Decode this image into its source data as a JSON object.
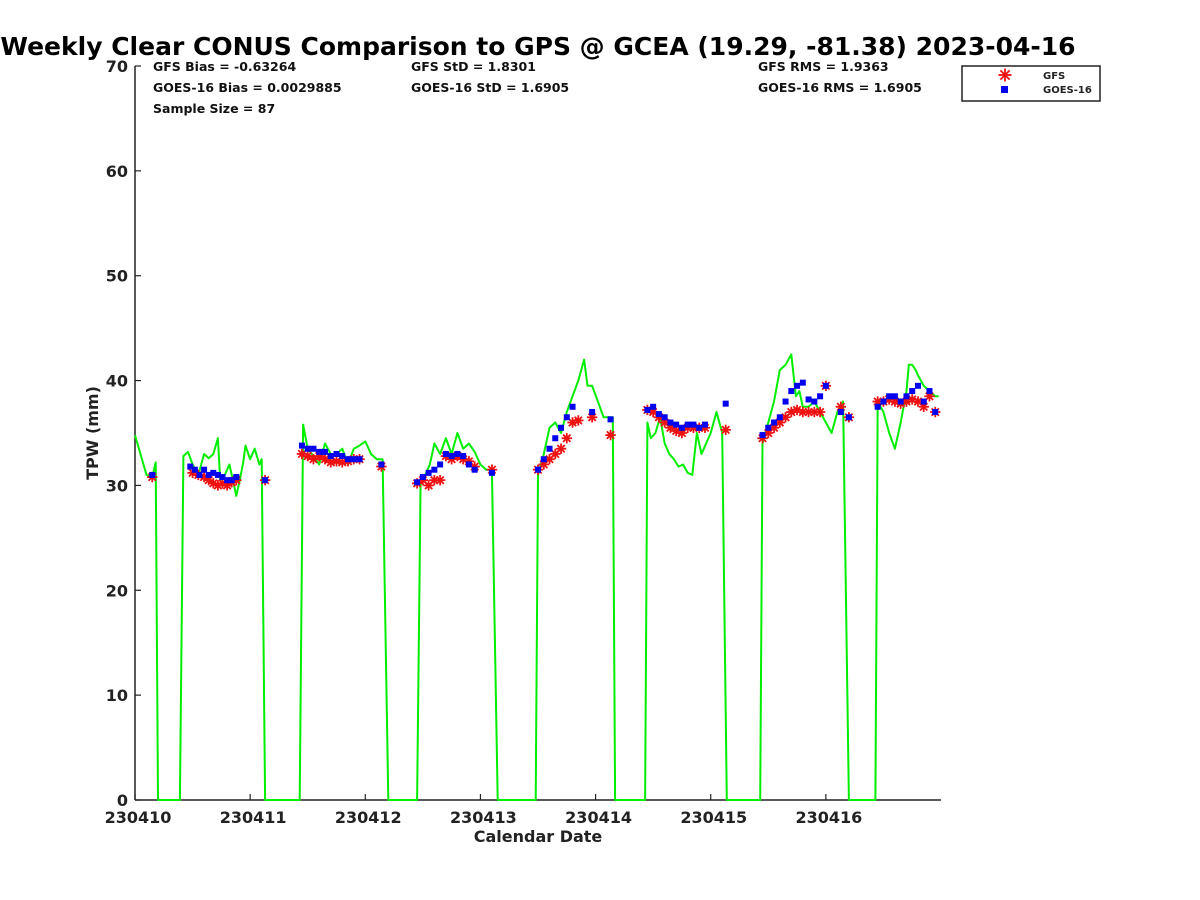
{
  "chart_data": {
    "type": "line",
    "title": "Weekly Clear CONUS Comparison to GPS @ GCEA (19.29, -81.38) 2023-04-16",
    "xlabel": "Calendar Date",
    "ylabel": "TPW (mm)",
    "ylim": [
      0,
      70
    ],
    "xlim": [
      0,
      7
    ],
    "yticks": [
      0,
      10,
      20,
      30,
      40,
      50,
      60,
      70
    ],
    "xticks": [
      {
        "value": 0,
        "label": "230410"
      },
      {
        "value": 1,
        "label": "230411"
      },
      {
        "value": 2,
        "label": "230412"
      },
      {
        "value": 3,
        "label": "230413"
      },
      {
        "value": 4,
        "label": "230414"
      },
      {
        "value": 5,
        "label": "230415"
      },
      {
        "value": 6,
        "label": "230416"
      }
    ],
    "grid": false,
    "legend_position": "top-right",
    "stats": {
      "gfs_bias": "GFS Bias = -0.63264",
      "goes_bias": "GOES-16 Bias = 0.0029885",
      "sample_size": "Sample Size = 87",
      "gfs_std": "GFS StD = 1.8301",
      "goes_std": "GOES-16 StD = 1.6905",
      "gfs_rms": "GFS RMS = 1.9363",
      "goes_rms": "GOES-16 RMS = 1.6905"
    },
    "series": [
      {
        "name": "GPS",
        "color": "#00ee00",
        "style": "line",
        "x": [
          0.0,
          0.1,
          0.15,
          0.18,
          0.2,
          0.39,
          0.42,
          0.46,
          0.5,
          0.55,
          0.6,
          0.64,
          0.68,
          0.72,
          0.74,
          0.78,
          0.82,
          0.85,
          0.88,
          0.91,
          0.94,
          0.96,
          1.0,
          1.04,
          1.08,
          1.1,
          1.13,
          1.15,
          1.43,
          1.46,
          1.5,
          1.55,
          1.6,
          1.65,
          1.7,
          1.75,
          1.8,
          1.85,
          1.9,
          1.95,
          2.0,
          2.05,
          2.1,
          2.15,
          2.2,
          2.45,
          2.48,
          2.52,
          2.56,
          2.6,
          2.65,
          2.7,
          2.75,
          2.8,
          2.85,
          2.9,
          2.95,
          3.0,
          3.05,
          3.1,
          3.15,
          3.2,
          3.48,
          3.5,
          3.55,
          3.6,
          3.65,
          3.7,
          3.75,
          3.8,
          3.85,
          3.9,
          3.93,
          3.97,
          4.02,
          4.07,
          4.15,
          4.17,
          4.19,
          4.43,
          4.45,
          4.48,
          4.52,
          4.56,
          4.6,
          4.64,
          4.68,
          4.72,
          4.76,
          4.8,
          4.84,
          4.88,
          4.92,
          4.96,
          5.0,
          5.05,
          5.1,
          5.14,
          5.18,
          5.21,
          5.23,
          5.43,
          5.45,
          5.5,
          5.55,
          5.6,
          5.65,
          5.7,
          5.74,
          5.77,
          5.8,
          5.85,
          5.9,
          5.95,
          6.0,
          6.05,
          6.1,
          6.15,
          6.2,
          6.23,
          6.25,
          6.27,
          6.43,
          6.45,
          6.5,
          6.55,
          6.6,
          6.65,
          6.7,
          6.72,
          6.75,
          6.78,
          6.8,
          6.85,
          6.9,
          6.95,
          6.98
        ],
        "y": [
          34.8,
          31.0,
          30.8,
          32.2,
          0,
          0,
          32.8,
          33.2,
          32.0,
          31.0,
          33.0,
          32.6,
          33.0,
          34.5,
          30.5,
          31.0,
          32.0,
          30.5,
          29.0,
          30.5,
          32.2,
          33.8,
          32.5,
          33.5,
          32.0,
          32.5,
          0,
          0,
          0,
          35.8,
          33.5,
          32.8,
          32.0,
          34.0,
          33.0,
          33.0,
          33.5,
          32.0,
          33.5,
          33.8,
          34.2,
          33.0,
          32.5,
          32.5,
          0,
          0,
          30.5,
          31.0,
          32.0,
          34.0,
          33.0,
          34.5,
          33.0,
          35.0,
          33.5,
          34.0,
          33.2,
          32.0,
          31.5,
          31.5,
          0,
          0,
          0,
          31.0,
          33.0,
          35.5,
          36.0,
          35.0,
          37.0,
          38.5,
          40.0,
          42.0,
          39.5,
          39.5,
          38.0,
          36.5,
          36.5,
          0,
          0,
          0,
          36.0,
          34.5,
          35.0,
          36.5,
          34.0,
          33.0,
          32.5,
          31.8,
          32.0,
          31.2,
          31.0,
          35.0,
          33.0,
          34.0,
          35.0,
          37.0,
          35.0,
          0,
          0,
          0,
          0,
          0,
          34.0,
          36.0,
          38.0,
          41.0,
          41.5,
          42.5,
          38.5,
          39.0,
          37.5,
          37.5,
          38.0,
          37.0,
          36.0,
          35.0,
          37.0,
          38.0,
          0,
          0,
          0,
          0,
          0,
          38.0,
          37.0,
          35.0,
          33.5,
          36.0,
          39.0,
          41.5,
          41.5,
          41.0,
          40.5,
          39.5,
          39.0,
          38.5,
          38.5
        ]
      },
      {
        "name": "GFS",
        "color": "#ee1111",
        "style": "asterisk",
        "x": [
          0.15,
          0.5,
          0.55,
          0.6,
          0.64,
          0.68,
          0.72,
          0.76,
          0.8,
          0.84,
          0.88,
          1.13,
          1.45,
          1.5,
          1.55,
          1.6,
          1.65,
          1.7,
          1.75,
          1.8,
          1.85,
          1.9,
          1.95,
          2.14,
          2.45,
          2.5,
          2.55,
          2.6,
          2.65,
          2.7,
          2.75,
          2.8,
          2.85,
          2.9,
          2.95,
          3.1,
          3.5,
          3.55,
          3.6,
          3.65,
          3.7,
          3.75,
          3.8,
          3.85,
          3.97,
          4.13,
          4.45,
          4.5,
          4.55,
          4.6,
          4.65,
          4.7,
          4.75,
          4.8,
          4.85,
          4.9,
          4.95,
          5.13,
          5.45,
          5.5,
          5.55,
          5.6,
          5.65,
          5.7,
          5.75,
          5.8,
          5.85,
          5.9,
          5.95,
          6.0,
          6.13,
          6.2,
          6.45,
          6.5,
          6.55,
          6.6,
          6.65,
          6.7,
          6.75,
          6.8,
          6.85,
          6.9,
          6.95
        ],
        "y": [
          30.8,
          31.2,
          31.0,
          30.8,
          30.5,
          30.2,
          30.0,
          30.2,
          30.0,
          30.3,
          30.5,
          30.5,
          33.0,
          32.8,
          32.5,
          32.8,
          32.5,
          32.2,
          32.3,
          32.2,
          32.3,
          32.5,
          32.5,
          31.8,
          30.2,
          30.5,
          30.0,
          30.5,
          30.5,
          32.8,
          32.5,
          32.8,
          32.5,
          32.3,
          31.8,
          31.5,
          31.5,
          32.0,
          32.5,
          33.0,
          33.5,
          34.5,
          36.0,
          36.2,
          36.5,
          34.8,
          37.2,
          37.0,
          36.5,
          36.0,
          35.5,
          35.2,
          35.0,
          35.5,
          35.5,
          35.5,
          35.5,
          35.3,
          34.5,
          35.0,
          35.5,
          36.0,
          36.5,
          37.0,
          37.2,
          37.0,
          37.0,
          37.0,
          37.0,
          39.5,
          37.5,
          36.5,
          38.0,
          38.0,
          38.2,
          38.0,
          37.8,
          38.0,
          38.2,
          38.0,
          37.5,
          38.5,
          37.0
        ]
      },
      {
        "name": "GOES-16",
        "color": "#0000ee",
        "style": "square",
        "x": [
          0.15,
          0.48,
          0.52,
          0.56,
          0.6,
          0.64,
          0.68,
          0.72,
          0.76,
          0.8,
          0.84,
          0.88,
          1.13,
          1.45,
          1.5,
          1.55,
          1.6,
          1.65,
          1.7,
          1.75,
          1.8,
          1.85,
          1.9,
          1.95,
          2.14,
          2.45,
          2.5,
          2.55,
          2.6,
          2.65,
          2.7,
          2.75,
          2.8,
          2.85,
          2.9,
          2.95,
          3.1,
          3.5,
          3.55,
          3.6,
          3.65,
          3.7,
          3.75,
          3.8,
          3.97,
          4.13,
          4.45,
          4.5,
          4.55,
          4.6,
          4.65,
          4.7,
          4.75,
          4.8,
          4.85,
          4.9,
          4.95,
          5.13,
          5.45,
          5.5,
          5.55,
          5.6,
          5.65,
          5.7,
          5.75,
          5.8,
          5.85,
          5.9,
          5.95,
          6.0,
          6.13,
          6.2,
          6.45,
          6.5,
          6.55,
          6.6,
          6.65,
          6.7,
          6.75,
          6.8,
          6.85,
          6.9,
          6.95
        ],
        "y": [
          31.0,
          31.8,
          31.5,
          31.0,
          31.5,
          31.0,
          31.2,
          31.0,
          30.8,
          30.5,
          30.5,
          30.8,
          30.5,
          33.8,
          33.5,
          33.5,
          33.2,
          33.2,
          32.8,
          33.0,
          32.8,
          32.5,
          32.5,
          32.5,
          32.0,
          30.3,
          30.8,
          31.2,
          31.5,
          32.0,
          33.0,
          32.8,
          33.0,
          32.8,
          32.0,
          31.5,
          31.2,
          31.5,
          32.5,
          33.5,
          34.5,
          35.5,
          36.5,
          37.5,
          37.0,
          36.3,
          37.2,
          37.5,
          36.8,
          36.5,
          36.0,
          35.8,
          35.5,
          35.8,
          35.8,
          35.5,
          35.8,
          37.8,
          34.8,
          35.5,
          36.0,
          36.5,
          38.0,
          39.0,
          39.5,
          39.8,
          38.2,
          38.0,
          38.5,
          39.5,
          37.0,
          36.5,
          37.5,
          38.0,
          38.5,
          38.5,
          38.0,
          38.5,
          39.0,
          39.5,
          38.0,
          39.0,
          37.0
        ]
      }
    ]
  }
}
